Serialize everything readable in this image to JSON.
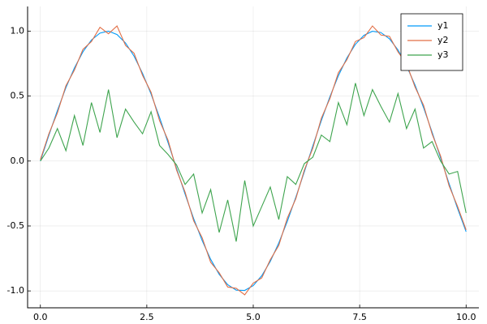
{
  "chart_data": {
    "type": "line",
    "x": [
      0,
      0.2,
      0.4,
      0.6,
      0.8,
      1,
      1.2,
      1.4,
      1.6,
      1.8,
      2,
      2.2,
      2.4,
      2.6,
      2.8,
      3,
      3.2,
      3.4,
      3.6,
      3.8,
      4,
      4.2,
      4.4,
      4.6,
      4.8,
      5,
      5.2,
      5.4,
      5.6,
      5.8,
      6,
      6.2,
      6.4,
      6.6,
      6.8,
      7,
      7.2,
      7.4,
      7.6,
      7.8,
      8,
      8.2,
      8.4,
      8.6,
      8.8,
      9,
      9.2,
      9.4,
      9.6,
      9.8,
      10
    ],
    "series": [
      {
        "name": "y1",
        "color": "#009af9",
        "values": [
          0,
          0.199,
          0.389,
          0.565,
          0.717,
          0.841,
          0.932,
          0.985,
          1.0,
          0.974,
          0.909,
          0.808,
          0.675,
          0.516,
          0.335,
          0.141,
          -0.058,
          -0.256,
          -0.443,
          -0.612,
          -0.757,
          -0.872,
          -0.952,
          -0.994,
          -0.996,
          -0.959,
          -0.883,
          -0.773,
          -0.631,
          -0.465,
          -0.279,
          -0.083,
          0.117,
          0.312,
          0.494,
          0.657,
          0.794,
          0.899,
          0.968,
          0.999,
          0.989,
          0.941,
          0.855,
          0.734,
          0.585,
          0.412,
          0.223,
          0.025,
          -0.174,
          -0.366,
          -0.544
        ]
      },
      {
        "name": "y2",
        "color": "#e26f46",
        "values": [
          0.01,
          0.21,
          0.37,
          0.58,
          0.7,
          0.86,
          0.92,
          1.03,
          0.98,
          1.04,
          0.89,
          0.83,
          0.66,
          0.53,
          0.31,
          0.16,
          -0.07,
          -0.24,
          -0.46,
          -0.59,
          -0.78,
          -0.86,
          -0.97,
          -0.98,
          -1.03,
          -0.94,
          -0.9,
          -0.76,
          -0.65,
          -0.44,
          -0.29,
          -0.07,
          0.1,
          0.33,
          0.48,
          0.68,
          0.78,
          0.92,
          0.95,
          1.04,
          0.97,
          0.96,
          0.84,
          0.75,
          0.57,
          0.43,
          0.21,
          0.04,
          -0.19,
          -0.35,
          -0.53
        ]
      },
      {
        "name": "y3",
        "color": "#3ea44e",
        "values": [
          0.0,
          0.1,
          0.25,
          0.08,
          0.35,
          0.12,
          0.45,
          0.22,
          0.55,
          0.18,
          0.4,
          0.3,
          0.21,
          0.38,
          0.12,
          0.05,
          -0.03,
          -0.18,
          -0.1,
          -0.4,
          -0.22,
          -0.55,
          -0.3,
          -0.62,
          -0.15,
          -0.5,
          -0.35,
          -0.2,
          -0.45,
          -0.12,
          -0.18,
          -0.02,
          0.03,
          0.2,
          0.15,
          0.45,
          0.28,
          0.6,
          0.35,
          0.55,
          0.42,
          0.3,
          0.52,
          0.25,
          0.4,
          0.1,
          0.15,
          0.0,
          -0.1,
          -0.08,
          -0.4
        ]
      }
    ],
    "xlim": [
      -0.3,
      10.3
    ],
    "ylim": [
      -1.13,
      1.19
    ],
    "xticks": [
      {
        "value": 0,
        "label": "0.0"
      },
      2.5,
      {
        "value": 5,
        "label": "5.0"
      },
      7.5,
      {
        "value": 10,
        "label": "10.0"
      }
    ],
    "yticks": [
      {
        "value": -1,
        "label": "-1.0"
      },
      -0.5,
      {
        "value": 0,
        "label": "0.0"
      },
      0.5,
      {
        "value": 1,
        "label": "1.0"
      }
    ],
    "grid": true,
    "legend": "top-right"
  }
}
